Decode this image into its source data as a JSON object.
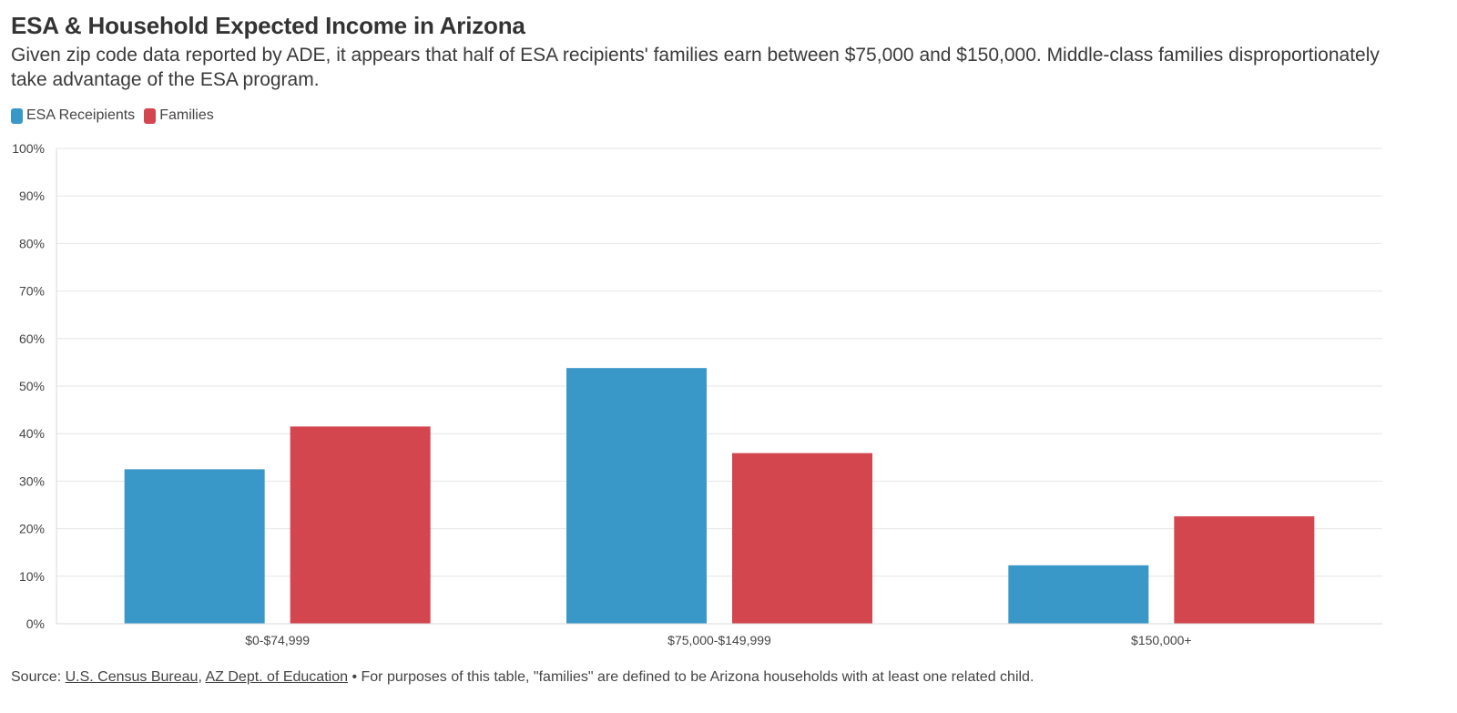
{
  "title": "ESA & Household Expected Income in Arizona",
  "subtitle": "Given zip code data reported by ADE, it appears that half of ESA recipients' families earn between $75,000 and $150,000. Middle-class families disproportionately take advantage of the ESA program.",
  "footer": {
    "source_prefix": "Source: ",
    "link1": "U.S. Census Bureau",
    "separator": ", ",
    "link2": "AZ Dept. of Education",
    "note": " • For purposes of this table, \"families\" are defined to be Arizona households with at least one related child."
  },
  "chart_data": {
    "type": "bar",
    "categories": [
      "$0-$74,999",
      "$75,000-$149,999",
      "$150,000+"
    ],
    "series": [
      {
        "name": "ESA Receipients",
        "color": "#3a98c9",
        "values": [
          32.5,
          53.8,
          12.3
        ]
      },
      {
        "name": "Families",
        "color": "#d3464e",
        "values": [
          41.5,
          35.9,
          22.6
        ]
      }
    ],
    "ylim": [
      0,
      100
    ],
    "yticks": [
      "0%",
      "10%",
      "20%",
      "30%",
      "40%",
      "50%",
      "60%",
      "70%",
      "80%",
      "90%",
      "100%"
    ],
    "grid": true,
    "legend_position": "top-left"
  }
}
